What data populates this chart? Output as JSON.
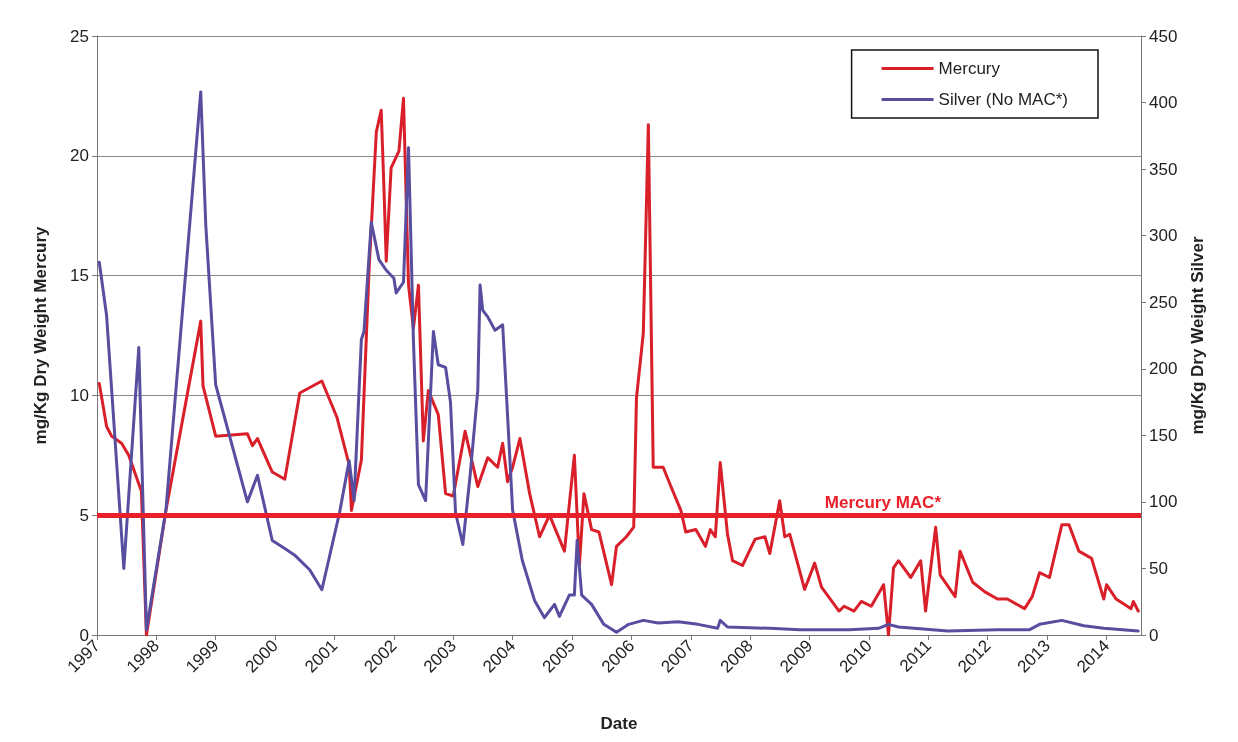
{
  "chart_data": {
    "type": "line",
    "xlabel": "Date",
    "ylabel": "mg/Kg Dry Weight Mercury",
    "y2label": "mg/Kg Dry Weight Silver",
    "xlim": [
      "1997-01-01",
      "2014-08-01"
    ],
    "xticks": [
      "1997",
      "1998",
      "1999",
      "2000",
      "2001",
      "2002",
      "2003",
      "2004",
      "2005",
      "2006",
      "2007",
      "2008",
      "2009",
      "2010",
      "2011",
      "2012",
      "2013",
      "2014"
    ],
    "ylim": [
      0,
      25
    ],
    "yticks": [
      0,
      5,
      10,
      15,
      20,
      25
    ],
    "y2lim": [
      0,
      450
    ],
    "y2ticks": [
      0,
      50,
      100,
      150,
      200,
      250,
      300,
      350,
      400,
      450
    ],
    "grid": "y",
    "legend": "top right",
    "marker": "none",
    "line_style": "solid",
    "ref_lines": [
      {
        "axis": "y",
        "value": 5,
        "label": "Mercury MAC*",
        "color": "#e8202a"
      }
    ],
    "series": [
      {
        "name": "Mercury",
        "color": "#d9202a",
        "x": [
          "1997-01-15",
          "1997-03-01",
          "1997-04-01",
          "1997-06-01",
          "1997-07-15",
          "1997-10-01",
          "1997-11-01",
          "1998-03-01",
          "1998-10-01",
          "1998-10-15",
          "1999-01-01",
          "1999-07-15",
          "1999-08-15",
          "1999-09-15",
          "1999-12-15",
          "2000-03-01",
          "2000-06-01",
          "2000-10-15",
          "2001-01-15",
          "2001-04-01",
          "2001-04-15",
          "2001-06-15",
          "2001-08-01",
          "2001-09-15",
          "2001-10-15",
          "2001-11-01",
          "2001-11-15",
          "2001-12-15",
          "2002-02-01",
          "2002-03-01",
          "2002-04-01",
          "2002-05-01",
          "2002-06-01",
          "2002-07-01",
          "2002-08-01",
          "2002-10-01",
          "2002-11-15",
          "2003-01-01",
          "2003-03-15",
          "2003-06-01",
          "2003-08-01",
          "2003-10-01",
          "2003-11-01",
          "2003-12-01",
          "2004-01-01",
          "2004-02-15",
          "2004-04-15",
          "2004-06-15",
          "2004-08-15",
          "2004-11-15",
          "2005-01-15",
          "2005-02-15",
          "2005-03-15",
          "2005-05-01",
          "2005-06-15",
          "2005-09-01",
          "2005-10-01",
          "2005-12-01",
          "2006-01-15",
          "2006-02-01",
          "2006-03-15",
          "2006-04-15",
          "2006-05-15",
          "2006-07-15",
          "2006-09-01",
          "2006-11-01",
          "2006-12-01",
          "2007-02-01",
          "2007-04-01",
          "2007-05-01",
          "2007-06-01",
          "2007-07-01",
          "2007-08-15",
          "2007-09-15",
          "2007-11-15",
          "2008-02-01",
          "2008-04-01",
          "2008-05-01",
          "2008-07-01",
          "2008-08-01",
          "2008-09-01",
          "2008-12-01",
          "2009-02-01",
          "2009-03-15",
          "2009-07-01",
          "2009-08-01",
          "2009-10-01",
          "2009-11-15",
          "2010-01-15",
          "2010-04-01",
          "2010-05-01",
          "2010-06-01",
          "2010-07-01",
          "2010-09-15",
          "2010-11-15",
          "2010-12-15",
          "2011-02-15",
          "2011-03-15",
          "2011-06-15",
          "2011-07-15",
          "2011-10-01",
          "2011-12-15",
          "2012-03-01",
          "2012-05-01",
          "2012-08-15",
          "2012-10-01",
          "2012-11-15",
          "2013-01-15",
          "2013-04-01",
          "2013-05-15",
          "2013-07-15",
          "2013-10-01",
          "2013-12-15",
          "2014-01-01",
          "2014-03-01",
          "2014-06-01",
          "2014-06-15",
          "2014-07-15"
        ],
        "values": [
          10.5,
          8.7,
          8.3,
          8.0,
          7.5,
          6.0,
          0,
          5.2,
          13.1,
          10.4,
          8.3,
          8.4,
          7.9,
          8.2,
          6.8,
          6.5,
          10.1,
          10.6,
          9.1,
          7.1,
          5.2,
          7.3,
          15.2,
          21.0,
          21.9,
          18.6,
          15.6,
          19.5,
          20.2,
          22.4,
          14.6,
          12.8,
          14.6,
          8.1,
          10.2,
          9.2,
          5.9,
          5.8,
          8.5,
          6.2,
          7.4,
          7.0,
          8.0,
          6.4,
          7.0,
          8.2,
          5.9,
          4.1,
          5.0,
          3.5,
          7.5,
          2.9,
          5.9,
          4.4,
          4.3,
          2.1,
          3.7,
          4.1,
          4.5,
          9.9,
          12.6,
          21.3,
          7.0,
          7.0,
          6.2,
          5.2,
          4.3,
          4.4,
          3.7,
          4.4,
          4.1,
          7.2,
          4.2,
          3.1,
          2.9,
          4.0,
          4.1,
          3.4,
          5.6,
          4.1,
          4.2,
          1.9,
          3.0,
          2.0,
          1.0,
          1.2,
          1.0,
          1.4,
          1.2,
          2.1,
          0.0,
          2.8,
          3.1,
          2.4,
          3.1,
          1.0,
          4.5,
          2.5,
          1.6,
          3.5,
          2.2,
          1.8,
          1.5,
          1.5,
          1.1,
          1.6,
          2.6,
          2.4,
          4.6,
          4.6,
          3.5,
          3.2,
          1.5,
          2.1,
          1.5,
          1.1,
          1.4,
          1.0
        ]
      },
      {
        "name": "Silver (No MAC*)",
        "color": "#574ea0",
        "axis": "y2",
        "x": [
          "1997-01-15",
          "1997-03-01",
          "1997-06-15",
          "1997-09-15",
          "1997-11-01",
          "1998-03-01",
          "1998-10-01",
          "1998-11-01",
          "1999-01-01",
          "1999-07-15",
          "1999-09-15",
          "1999-12-15",
          "2000-03-01",
          "2000-05-01",
          "2000-08-01",
          "2000-10-15",
          "2001-02-01",
          "2001-04-01",
          "2001-05-01",
          "2001-06-15",
          "2001-07-01",
          "2001-08-15",
          "2001-10-01",
          "2001-11-15",
          "2002-01-01",
          "2002-01-15",
          "2002-03-01",
          "2002-04-01",
          "2002-05-01",
          "2002-06-01",
          "2002-07-15",
          "2002-09-01",
          "2002-10-01",
          "2002-11-15",
          "2002-12-15",
          "2003-01-15",
          "2003-03-01",
          "2003-04-15",
          "2003-06-01",
          "2003-06-15",
          "2003-07-01",
          "2003-08-01",
          "2003-09-15",
          "2003-11-01",
          "2003-12-01",
          "2004-01-01",
          "2004-03-01",
          "2004-05-15",
          "2004-07-15",
          "2004-09-15",
          "2004-10-15",
          "2004-12-15",
          "2005-01-15",
          "2005-02-01",
          "2005-03-01",
          "2005-05-01",
          "2005-07-15",
          "2005-10-01",
          "2005-12-15",
          "2006-03-15",
          "2006-06-15",
          "2006-10-15",
          "2007-02-15",
          "2007-06-15",
          "2007-07-01",
          "2007-08-15",
          "2008-05-01",
          "2008-11-01",
          "2009-09-01",
          "2010-03-01",
          "2010-05-01",
          "2010-07-01",
          "2011-05-01",
          "2012-03-01",
          "2012-09-15",
          "2012-11-15",
          "2013-04-01",
          "2013-08-15",
          "2013-12-15",
          "2014-07-15"
        ],
        "values": [
          280,
          240,
          50,
          216,
          4,
          94,
          408,
          308,
          188,
          100,
          120,
          71,
          65,
          60,
          49,
          34,
          92,
          131,
          101,
          222,
          228,
          310,
          282,
          274,
          268,
          257,
          265,
          366,
          222,
          113,
          101,
          228,
          203,
          201,
          175,
          92,
          68,
          120,
          184,
          263,
          244,
          239,
          229,
          233,
          165,
          94,
          56,
          26,
          13,
          23,
          14,
          30,
          30,
          71,
          30,
          23,
          8,
          2,
          8,
          11,
          9,
          10,
          8,
          5,
          11,
          6,
          5,
          4,
          4,
          5,
          8,
          6,
          3,
          4,
          4,
          8,
          11,
          7,
          5,
          3
        ]
      }
    ]
  }
}
